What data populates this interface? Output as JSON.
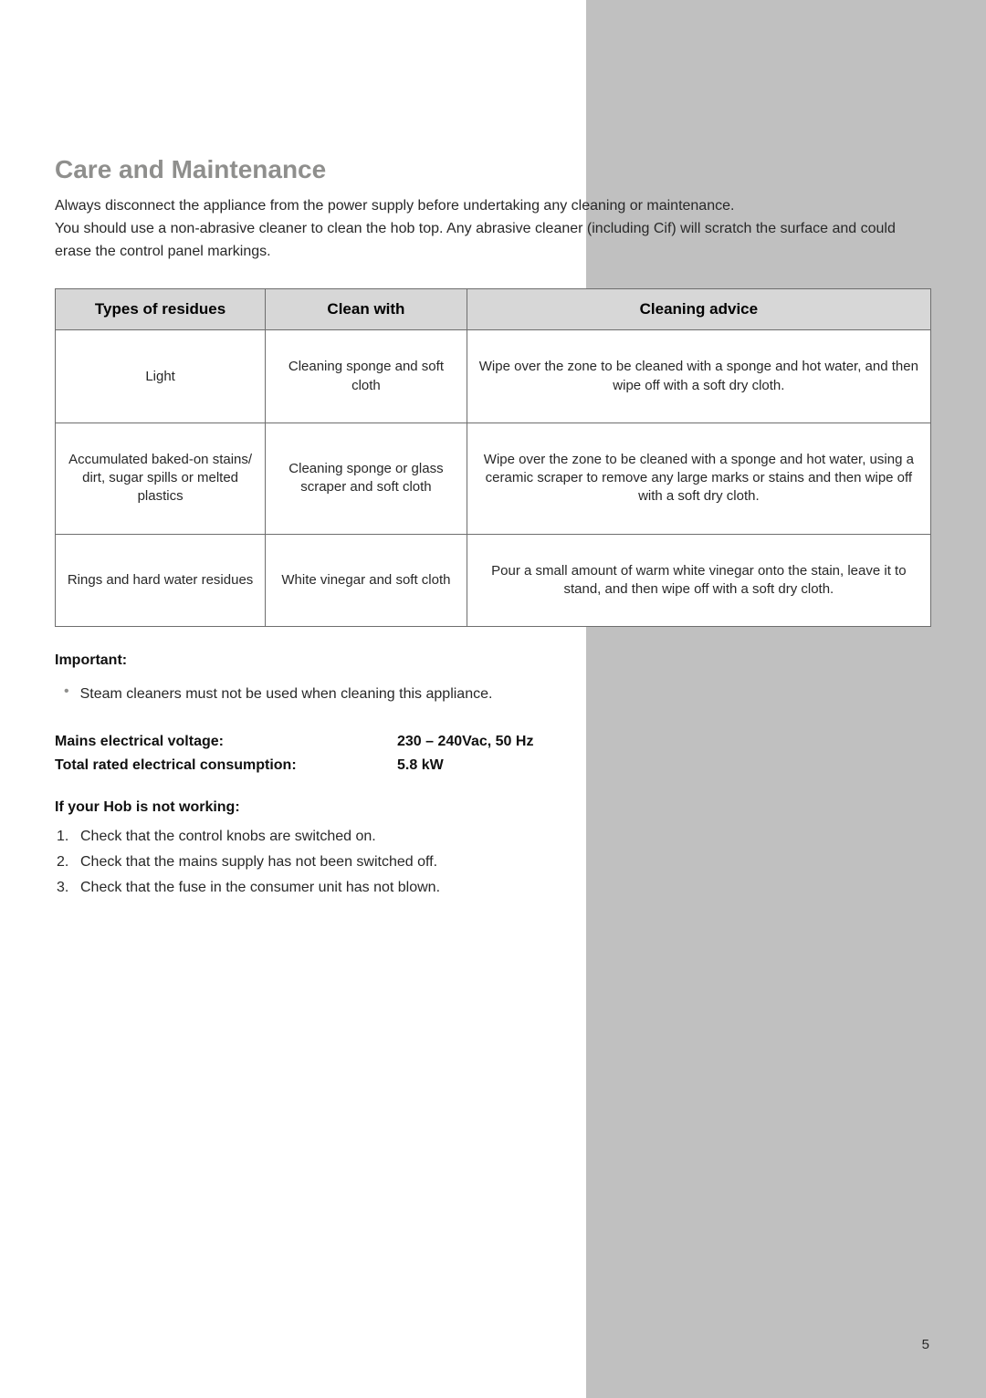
{
  "section": {
    "title": "Care and Maintenance",
    "intro_1": "Always disconnect the appliance from the power supply before undertaking any cleaning or maintenance.",
    "intro_2": "You should use a non-abrasive cleaner to clean the hob top. Any abrasive cleaner (including Cif) will scratch the surface and could erase the control panel markings."
  },
  "table": {
    "columns": [
      "Types of residues",
      "Clean with",
      "Cleaning advice"
    ],
    "rows": [
      [
        "Light",
        "Cleaning sponge and soft cloth",
        "Wipe over the zone to be cleaned with a sponge and hot water, and then wipe off with a soft dry cloth."
      ],
      [
        "Accumulated baked-on stains/ dirt, sugar spills or melted plastics",
        "Cleaning sponge or glass scraper and soft cloth",
        "Wipe over the zone to be cleaned with a sponge and hot water, using a ceramic scraper to remove any large marks or stains and then wipe off with a soft dry cloth."
      ],
      [
        "Rings and hard water residues",
        "White vinegar and soft cloth",
        "Pour a small amount of warm white vinegar onto the stain, leave it to stand, and then wipe off with a soft dry cloth."
      ]
    ]
  },
  "important": {
    "label": "Important:",
    "bullet": "Steam cleaners must not be used when cleaning this appliance."
  },
  "specs": {
    "voltage_label": "Mains electrical voltage:",
    "voltage_value": "230 – 240Vac, 50 Hz",
    "consumption_label": "Total rated electrical consumption:",
    "consumption_value": "5.8 kW"
  },
  "troubleshoot": {
    "heading": "If your Hob is not working:",
    "items": [
      "Check that the control knobs are switched on.",
      "Check that the mains supply has not been switched off.",
      "Check that the fuse in the consumer unit has not blown."
    ]
  },
  "page_number": "5",
  "colors": {
    "side_band": "#c0c0c0",
    "heading": "#8f8f8d",
    "th_bg": "#d7d7d7",
    "border": "#6e6e6e"
  }
}
